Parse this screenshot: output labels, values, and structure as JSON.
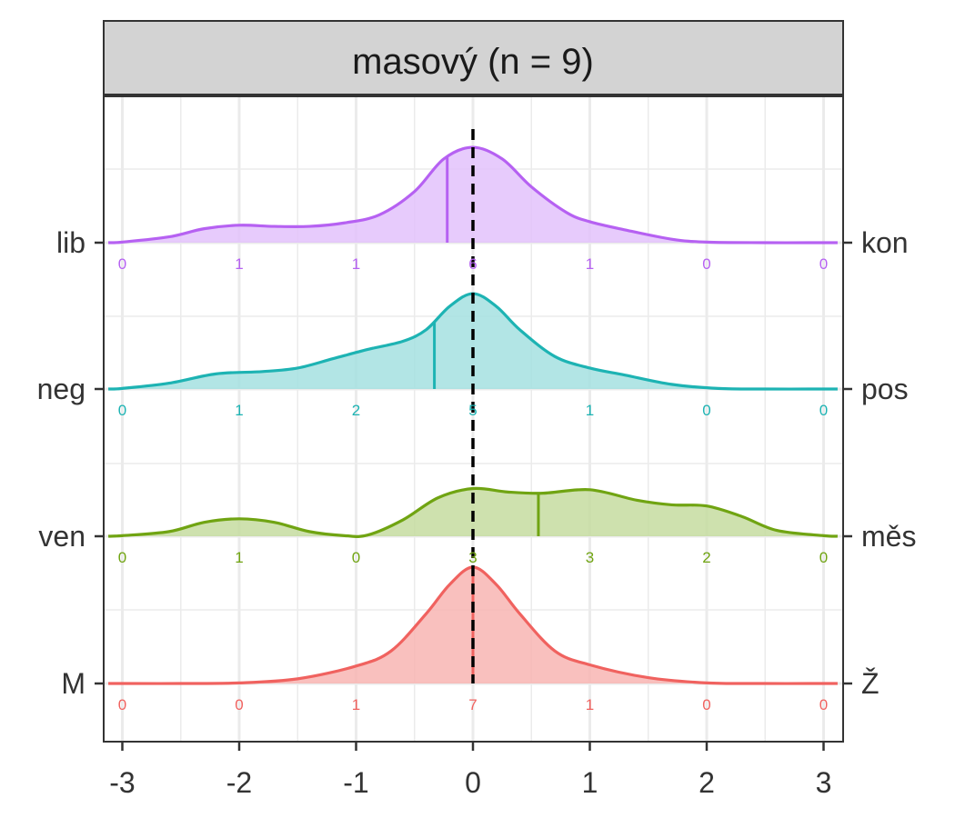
{
  "chart_data": {
    "type": "ridgeline-density",
    "title": "masový (n = 9)",
    "xlabel": "",
    "ylabel": "",
    "xlim": [
      -3,
      3
    ],
    "x_ticks": [
      "-3",
      "-2",
      "-1",
      "0",
      "1",
      "2",
      "3"
    ],
    "x_tick_values": [
      -3,
      -2,
      -1,
      0,
      1,
      2,
      3
    ],
    "reference_line_x": 0,
    "grid": true,
    "series": [
      {
        "left_label": "M",
        "right_label": "Ž",
        "color": "#F0625F",
        "fill": "#F8B5B3",
        "mean": 0,
        "count_x": [
          -3,
          -2,
          -1,
          0,
          1,
          2,
          3
        ],
        "counts": [
          "0",
          "0",
          "1",
          "7",
          "1",
          "0",
          "0"
        ],
        "density": [
          [
            -3,
            0
          ],
          [
            -2.5,
            0
          ],
          [
            -2,
            0.005
          ],
          [
            -1.5,
            0.04
          ],
          [
            -1,
            0.15
          ],
          [
            -0.7,
            0.28
          ],
          [
            -0.4,
            0.6
          ],
          [
            -0.2,
            0.85
          ],
          [
            0,
            1
          ],
          [
            0.2,
            0.85
          ],
          [
            0.4,
            0.6
          ],
          [
            0.7,
            0.28
          ],
          [
            1,
            0.16
          ],
          [
            1.5,
            0.05
          ],
          [
            2,
            0.005
          ],
          [
            2.5,
            0
          ],
          [
            3,
            0
          ]
        ]
      },
      {
        "left_label": "ven",
        "right_label": "měs",
        "color": "#70A412",
        "fill": "#C6DCA0",
        "mean": 0.56,
        "count_x": [
          -3,
          -2,
          -1,
          0,
          1,
          2,
          3
        ],
        "counts": [
          "0",
          "1",
          "0",
          "3",
          "3",
          "2",
          "0"
        ],
        "density": [
          [
            -3,
            0.005
          ],
          [
            -2.6,
            0.04
          ],
          [
            -2.3,
            0.12
          ],
          [
            -2,
            0.15
          ],
          [
            -1.7,
            0.12
          ],
          [
            -1.4,
            0.04
          ],
          [
            -1.1,
            0.005
          ],
          [
            -0.9,
            0.01
          ],
          [
            -0.6,
            0.14
          ],
          [
            -0.3,
            0.33
          ],
          [
            0,
            0.41
          ],
          [
            0.3,
            0.38
          ],
          [
            0.6,
            0.37
          ],
          [
            1,
            0.4
          ],
          [
            1.4,
            0.31
          ],
          [
            1.7,
            0.27
          ],
          [
            2,
            0.26
          ],
          [
            2.3,
            0.17
          ],
          [
            2.6,
            0.05
          ],
          [
            3,
            0.005
          ]
        ]
      },
      {
        "left_label": "neg",
        "right_label": "pos",
        "color": "#1DB3B3",
        "fill": "#A4E1E1",
        "mean": -0.33,
        "count_x": [
          -3,
          -2,
          -1,
          0,
          1,
          2,
          3
        ],
        "counts": [
          "0",
          "1",
          "2",
          "5",
          "1",
          "0",
          "0"
        ],
        "density": [
          [
            -3,
            0.005
          ],
          [
            -2.6,
            0.05
          ],
          [
            -2.2,
            0.13
          ],
          [
            -1.8,
            0.15
          ],
          [
            -1.5,
            0.18
          ],
          [
            -1.2,
            0.26
          ],
          [
            -0.9,
            0.34
          ],
          [
            -0.6,
            0.41
          ],
          [
            -0.4,
            0.51
          ],
          [
            -0.2,
            0.71
          ],
          [
            0,
            0.82
          ],
          [
            0.2,
            0.71
          ],
          [
            0.4,
            0.51
          ],
          [
            0.7,
            0.28
          ],
          [
            1,
            0.18
          ],
          [
            1.3,
            0.12
          ],
          [
            1.7,
            0.04
          ],
          [
            2.1,
            0.005
          ],
          [
            2.5,
            0
          ],
          [
            3,
            0
          ]
        ]
      },
      {
        "left_label": "lib",
        "right_label": "kon",
        "color": "#B661F2",
        "fill": "#E3C2FB",
        "mean": -0.22,
        "count_x": [
          -3,
          -2,
          -1,
          0,
          1,
          2,
          3
        ],
        "counts": [
          "0",
          "1",
          "1",
          "6",
          "1",
          "0",
          "0"
        ],
        "density": [
          [
            -3,
            0.005
          ],
          [
            -2.6,
            0.05
          ],
          [
            -2.3,
            0.12
          ],
          [
            -2,
            0.15
          ],
          [
            -1.7,
            0.14
          ],
          [
            -1.4,
            0.14
          ],
          [
            -1.1,
            0.17
          ],
          [
            -0.8,
            0.24
          ],
          [
            -0.5,
            0.44
          ],
          [
            -0.25,
            0.72
          ],
          [
            0,
            0.82
          ],
          [
            0.25,
            0.72
          ],
          [
            0.5,
            0.48
          ],
          [
            0.8,
            0.26
          ],
          [
            1,
            0.18
          ],
          [
            1.3,
            0.11
          ],
          [
            1.7,
            0.03
          ],
          [
            2,
            0.005
          ],
          [
            2.5,
            0
          ],
          [
            3,
            0
          ]
        ]
      }
    ]
  }
}
